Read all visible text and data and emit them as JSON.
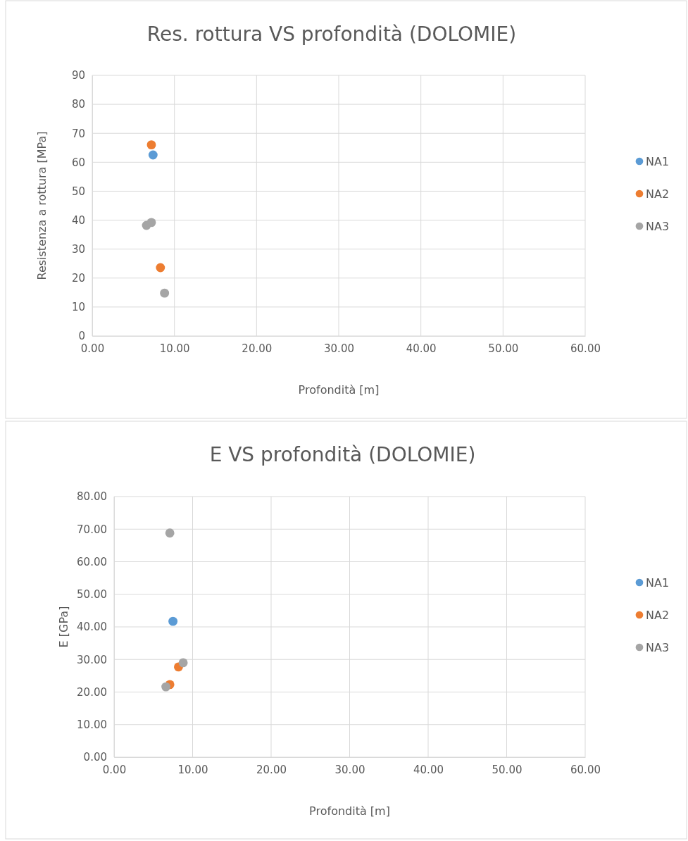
{
  "chart_data": [
    {
      "type": "scatter",
      "title": "Res. rottura VS profondità (DOLOMIE)",
      "xlabel": "Profondità [m]",
      "ylabel": "Resistenza a rottura [MPa]",
      "xlim": [
        0,
        60
      ],
      "xticks": [
        {
          "value": 0,
          "label": "0.00"
        },
        {
          "value": 10,
          "label": "10.00"
        },
        {
          "value": 20,
          "label": "20.00"
        },
        {
          "value": 30,
          "label": "30.00"
        },
        {
          "value": 40,
          "label": "40.00"
        },
        {
          "value": 50,
          "label": "50.00"
        },
        {
          "value": 60,
          "label": "60.00"
        }
      ],
      "ylim": [
        0,
        90
      ],
      "yticks": [
        0,
        10,
        20,
        30,
        40,
        50,
        60,
        70,
        80,
        90
      ],
      "grid": true,
      "legend": "right",
      "marker": "circle",
      "series": [
        {
          "name": "NA1",
          "color": "#5b9bd5",
          "x": [
            7.4
          ],
          "values": [
            62.5
          ]
        },
        {
          "name": "NA2",
          "color": "#ed7d31",
          "x": [
            7.2,
            8.3
          ],
          "values": [
            66,
            23.6
          ]
        },
        {
          "name": "NA3",
          "color": "#a5a5a5",
          "x": [
            6.6,
            7.2,
            8.8
          ],
          "values": [
            38.2,
            39.2,
            14.8
          ]
        }
      ]
    },
    {
      "type": "scatter",
      "title": "E VS profondità (DOLOMIE)",
      "xlabel": "Profondità [m]",
      "ylabel": "E [GPa]",
      "xlim": [
        0,
        60
      ],
      "xticks": [
        {
          "value": 0,
          "label": "0.00"
        },
        {
          "value": 10,
          "label": "10.00"
        },
        {
          "value": 20,
          "label": "20.00"
        },
        {
          "value": 30,
          "label": "30.00"
        },
        {
          "value": 40,
          "label": "40.00"
        },
        {
          "value": 50,
          "label": "50.00"
        },
        {
          "value": 60,
          "label": "60.00"
        }
      ],
      "ylim": [
        0,
        80
      ],
      "yticks": [
        {
          "value": 0,
          "label": "0.00"
        },
        {
          "value": 10,
          "label": "10.00"
        },
        {
          "value": 20,
          "label": "20.00"
        },
        {
          "value": 30,
          "label": "30.00"
        },
        {
          "value": 40,
          "label": "40.00"
        },
        {
          "value": 50,
          "label": "50.00"
        },
        {
          "value": 60,
          "label": "60.00"
        },
        {
          "value": 70,
          "label": "70.00"
        },
        {
          "value": 80,
          "label": "80.00"
        }
      ],
      "grid": true,
      "legend": "right",
      "marker": "circle",
      "series": [
        {
          "name": "NA1",
          "color": "#5b9bd5",
          "x": [
            7.5
          ],
          "values": [
            41.7
          ]
        },
        {
          "name": "NA2",
          "color": "#ed7d31",
          "x": [
            8.2,
            7.1
          ],
          "values": [
            27.7,
            22.3
          ]
        },
        {
          "name": "NA3",
          "color": "#a5a5a5",
          "x": [
            7.1,
            8.8,
            6.6
          ],
          "values": [
            68.8,
            29,
            21.6
          ]
        }
      ]
    }
  ]
}
